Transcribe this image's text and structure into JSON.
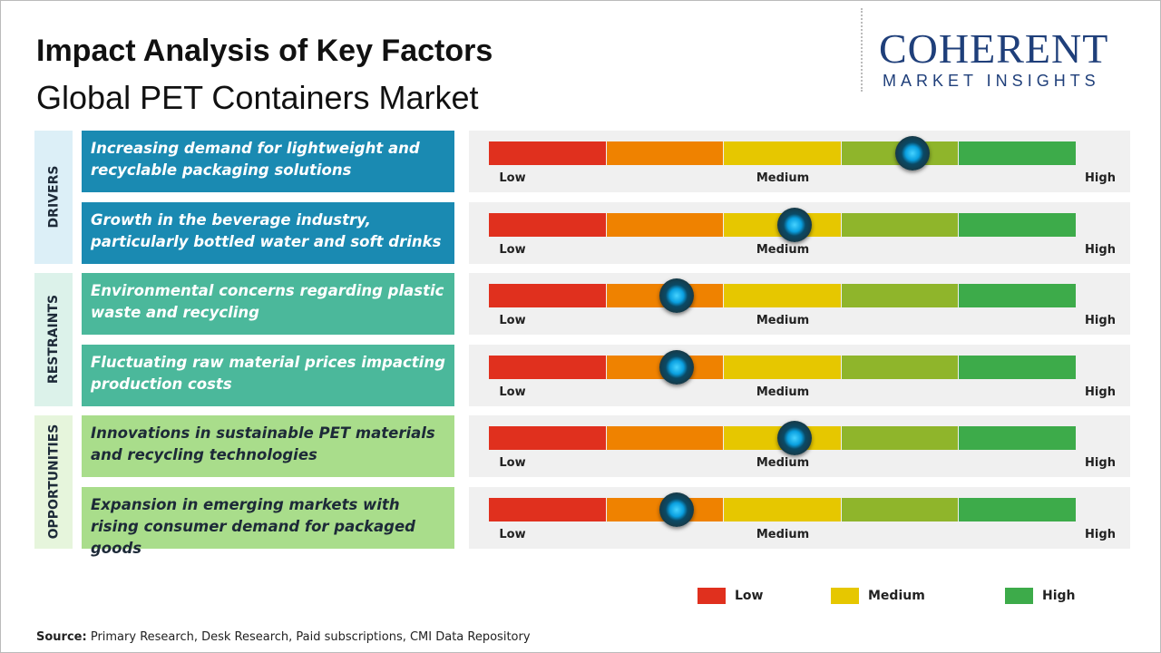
{
  "header": {
    "title": "Impact Analysis of Key Factors",
    "subtitle": "Global PET Containers Market"
  },
  "logo": {
    "name": "COHERENT",
    "tagline": "MARKET INSIGHTS"
  },
  "scale": {
    "range": [
      0,
      5
    ],
    "labels": [
      "Low",
      "Medium",
      "High"
    ],
    "segment_colors": [
      "#e0301e",
      "#ef8200",
      "#e6c700",
      "#8fb52b",
      "#3dab4a"
    ]
  },
  "groups": [
    {
      "label": "DRIVERS",
      "label_bg": "#dceff7",
      "box_color": "#1a8ab2",
      "text_color": "#ffffff",
      "factors": [
        {
          "text": "Increasing demand for lightweight and recyclable packaging solutions",
          "impact": 3.6
        },
        {
          "text": "Growth in the beverage industry, particularly bottled water and soft drinks",
          "impact": 2.6
        }
      ]
    },
    {
      "label": "RESTRAINTS",
      "label_bg": "#dcf2ea",
      "box_color": "#4bb89b",
      "text_color": "#ffffff",
      "factors": [
        {
          "text": "Environmental concerns regarding plastic waste and recycling",
          "impact": 1.6
        },
        {
          "text": "Fluctuating raw material prices impacting production costs",
          "impact": 1.6
        }
      ]
    },
    {
      "label": "OPPORTUNITIES",
      "label_bg": "#e6f5dc",
      "box_color": "#a9dd8b",
      "text_color": "#1d2a38",
      "factors": [
        {
          "text": "Innovations in sustainable PET materials and recycling technologies",
          "impact": 2.6
        },
        {
          "text": "Expansion in emerging markets with rising consumer demand for packaged goods",
          "impact": 1.6
        }
      ]
    }
  ],
  "legend": [
    {
      "label": "Low",
      "color": "#e0301e"
    },
    {
      "label": "Medium",
      "color": "#e6c700"
    },
    {
      "label": "High",
      "color": "#3dab4a"
    }
  ],
  "source": {
    "label": "Source:",
    "text": "Primary Research, Desk Research, Paid subscriptions, CMI Data Repository"
  }
}
